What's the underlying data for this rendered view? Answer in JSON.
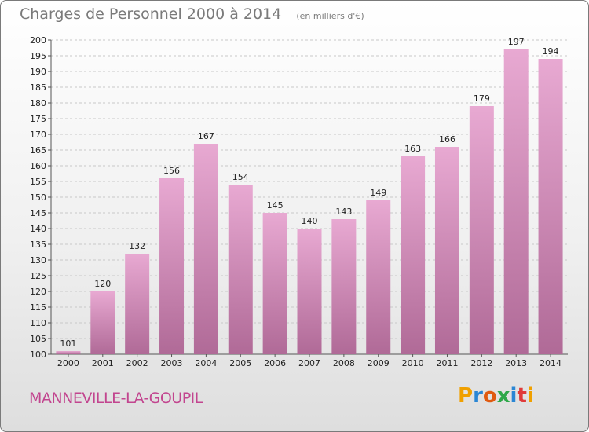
{
  "colors": {
    "bar_light": "#e8a9d2",
    "bar_dark": "#b06a97",
    "grid": "#c8c8c8",
    "axis_text": "#222222",
    "commune_text": "#c2458f",
    "logo_letters": [
      "#f0a000",
      "#2a86d4",
      "#e05a10",
      "#2fa84a",
      "#2a86d4",
      "#e03a3a"
    ]
  },
  "header": {
    "title": "Charges de Personnel 2000 à 2014",
    "subtitle": "(en milliers d'€)"
  },
  "footer": {
    "commune": "MANNEVILLE-LA-GOUPIL",
    "logo_text": "Proxiti"
  },
  "chart_data": {
    "type": "bar",
    "title": "Charges de Personnel 2000 à 2014",
    "subtitle": "(en milliers d'€)",
    "categories": [
      "2000",
      "2001",
      "2002",
      "2003",
      "2004",
      "2005",
      "2006",
      "2007",
      "2008",
      "2009",
      "2010",
      "2011",
      "2012",
      "2013",
      "2014"
    ],
    "values": [
      101,
      120,
      132,
      156,
      167,
      154,
      145,
      140,
      143,
      149,
      163,
      166,
      179,
      197,
      194
    ],
    "ylim": [
      100,
      200
    ],
    "yticks": [
      100,
      105,
      110,
      115,
      120,
      125,
      130,
      135,
      140,
      145,
      150,
      155,
      160,
      165,
      170,
      175,
      180,
      185,
      190,
      195,
      200
    ],
    "grid": true,
    "data_labels": true
  }
}
